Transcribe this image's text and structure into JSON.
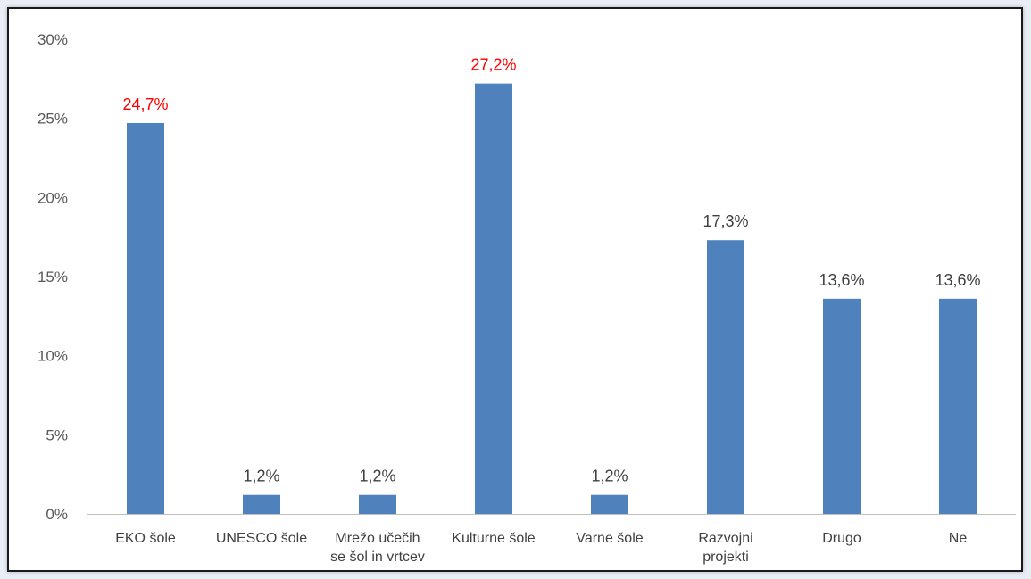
{
  "chart_data": {
    "type": "bar",
    "categories": [
      [
        "EKO šole"
      ],
      [
        "UNESCO šole"
      ],
      [
        "Mrežo učečih",
        "se šol in vrtcev"
      ],
      [
        "Kulturne šole"
      ],
      [
        "Varne šole"
      ],
      [
        "Razvojni",
        "projekti"
      ],
      [
        "Drugo"
      ],
      [
        "Ne"
      ]
    ],
    "values": [
      24.7,
      1.2,
      1.2,
      27.2,
      1.2,
      17.3,
      13.6,
      13.6
    ],
    "value_labels": [
      "24,7%",
      "1,2%",
      "1,2%",
      "27,2%",
      "1,2%",
      "17,3%",
      "13,6%",
      "13,6%"
    ],
    "highlight": [
      true,
      false,
      false,
      true,
      false,
      false,
      false,
      false
    ],
    "y_ticks": [
      {
        "value": 0,
        "label": "0%"
      },
      {
        "value": 5,
        "label": "5%"
      },
      {
        "value": 10,
        "label": "10%"
      },
      {
        "value": 15,
        "label": "15%"
      },
      {
        "value": 20,
        "label": "20%"
      },
      {
        "value": 25,
        "label": "25%"
      },
      {
        "value": 30,
        "label": "30%"
      }
    ],
    "ylim": [
      0,
      30
    ],
    "grid": false,
    "title": "",
    "xlabel": "",
    "ylabel": "",
    "colors": {
      "bar": "#4f81bd",
      "label_normal": "#404040",
      "label_highlight": "#ff0000",
      "axis": "#bfbfbf"
    }
  }
}
